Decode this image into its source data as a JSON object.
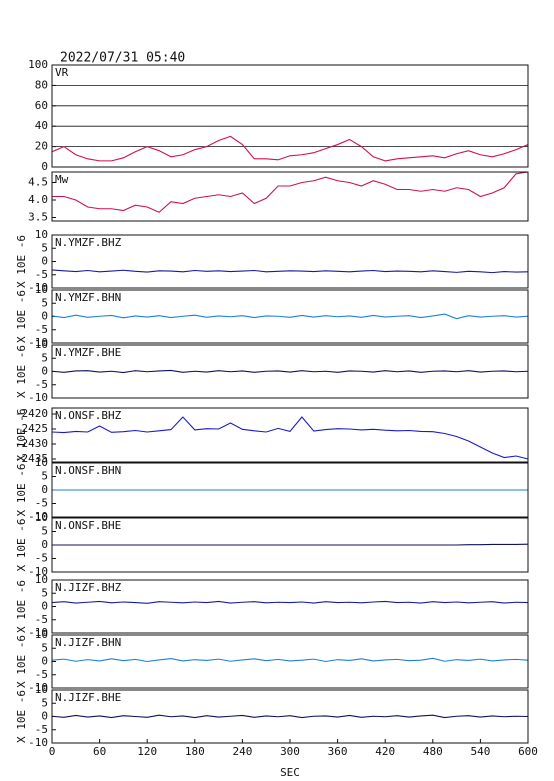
{
  "chart_data": [
    {
      "type": "line",
      "title": "2022/07/31 05:40",
      "label": "VR",
      "color": "#d0104c",
      "grid": true,
      "xlim": [
        0,
        600
      ],
      "ylim": [
        0,
        100
      ],
      "yticks": [
        0,
        20,
        40,
        60,
        80,
        100
      ],
      "x": [
        0,
        15,
        30,
        45,
        60,
        75,
        90,
        105,
        120,
        135,
        150,
        165,
        180,
        195,
        210,
        225,
        240,
        255,
        270,
        285,
        300,
        315,
        330,
        345,
        360,
        375,
        390,
        405,
        420,
        435,
        450,
        465,
        480,
        495,
        510,
        525,
        540,
        555,
        570,
        585,
        600
      ],
      "values": [
        15,
        20,
        12,
        8,
        6,
        6,
        9,
        15,
        20,
        16,
        10,
        12,
        17,
        20,
        26,
        30,
        22,
        8,
        8,
        7,
        11,
        12,
        14,
        18,
        22,
        27,
        20,
        10,
        6,
        8,
        9,
        10,
        11,
        9,
        13,
        16,
        12,
        10,
        13,
        17,
        22
      ]
    },
    {
      "type": "line",
      "label": "Mw",
      "color": "#d0104c",
      "grid": false,
      "xlim": [
        0,
        600
      ],
      "ylim": [
        3.4,
        4.8
      ],
      "yticks": [
        3.5,
        {
          "value": 4,
          "label": "4.0"
        },
        4.5
      ],
      "x": [
        0,
        15,
        30,
        45,
        60,
        75,
        90,
        105,
        120,
        135,
        150,
        165,
        180,
        195,
        210,
        225,
        240,
        255,
        270,
        285,
        300,
        315,
        330,
        345,
        360,
        375,
        390,
        405,
        420,
        435,
        450,
        465,
        480,
        495,
        510,
        525,
        540,
        555,
        570,
        585,
        600
      ],
      "values": [
        4.1,
        4.1,
        4.0,
        3.8,
        3.75,
        3.75,
        3.7,
        3.85,
        3.8,
        3.65,
        3.95,
        3.9,
        4.05,
        4.1,
        4.15,
        4.1,
        4.2,
        3.9,
        4.05,
        4.4,
        4.4,
        4.5,
        4.55,
        4.65,
        4.55,
        4.5,
        4.4,
        4.55,
        4.45,
        4.3,
        4.3,
        4.25,
        4.3,
        4.25,
        4.35,
        4.3,
        4.1,
        4.2,
        4.35,
        4.75,
        4.8
      ]
    },
    {
      "type": "line",
      "label": "N.YMZF.BHZ",
      "ylabel": "X 10E -6",
      "color": "#1a1aa0",
      "grid": false,
      "xlim": [
        0,
        600
      ],
      "ylim": [
        -10,
        10
      ],
      "yticks": [
        -10,
        -5,
        0,
        5,
        10
      ],
      "x": [
        0,
        15,
        30,
        45,
        60,
        75,
        90,
        105,
        120,
        135,
        150,
        165,
        180,
        195,
        210,
        225,
        240,
        255,
        270,
        285,
        300,
        315,
        330,
        345,
        360,
        375,
        390,
        405,
        420,
        435,
        450,
        465,
        480,
        495,
        510,
        525,
        540,
        555,
        570,
        585,
        600
      ],
      "values": [
        -3.2,
        -3.5,
        -3.8,
        -3.4,
        -3.9,
        -3.6,
        -3.3,
        -3.7,
        -4.0,
        -3.5,
        -3.6,
        -3.9,
        -3.4,
        -3.7,
        -3.5,
        -3.8,
        -3.6,
        -3.4,
        -3.9,
        -3.7,
        -3.5,
        -3.6,
        -3.8,
        -3.5,
        -3.7,
        -3.9,
        -3.6,
        -3.4,
        -3.8,
        -3.6,
        -3.7,
        -3.9,
        -3.5,
        -3.8,
        -4.1,
        -3.7,
        -3.9,
        -4.2,
        -3.8,
        -4.0,
        -3.9
      ]
    },
    {
      "type": "line",
      "label": "N.YMZF.BHN",
      "ylabel": "X 10E -6",
      "color": "#1e7fd8",
      "grid": false,
      "xlim": [
        0,
        600
      ],
      "ylim": [
        -10,
        10
      ],
      "yticks": [
        -10,
        -5,
        0,
        5,
        10
      ],
      "x": [
        0,
        15,
        30,
        45,
        60,
        75,
        90,
        105,
        120,
        135,
        150,
        165,
        180,
        195,
        210,
        225,
        240,
        255,
        270,
        285,
        300,
        315,
        330,
        345,
        360,
        375,
        390,
        405,
        420,
        435,
        450,
        465,
        480,
        495,
        510,
        525,
        540,
        555,
        570,
        585,
        600
      ],
      "values": [
        0.2,
        -0.4,
        0.5,
        -0.3,
        0.1,
        0.4,
        -0.5,
        0.2,
        -0.2,
        0.3,
        -0.4,
        0.1,
        0.5,
        -0.3,
        0.2,
        -0.1,
        0.3,
        -0.4,
        0.2,
        0.1,
        -0.3,
        0.4,
        -0.2,
        0.3,
        -0.1,
        0.2,
        -0.3,
        0.4,
        -0.2,
        0.1,
        0.3,
        -0.4,
        0.2,
        0.9,
        -0.8,
        0.3,
        -0.2,
        0.1,
        0.3,
        -0.2,
        0.1
      ]
    },
    {
      "type": "line",
      "label": "N.YMZF.BHE",
      "ylabel": "X 10E -6",
      "color": "#101060",
      "grid": false,
      "xlim": [
        0,
        600
      ],
      "ylim": [
        -10,
        10
      ],
      "yticks": [
        -10,
        -5,
        0,
        5,
        10
      ],
      "x": [
        0,
        15,
        30,
        45,
        60,
        75,
        90,
        105,
        120,
        135,
        150,
        165,
        180,
        195,
        210,
        225,
        240,
        255,
        270,
        285,
        300,
        315,
        330,
        345,
        360,
        375,
        390,
        405,
        420,
        435,
        450,
        465,
        480,
        495,
        510,
        525,
        540,
        555,
        570,
        585,
        600
      ],
      "values": [
        0.1,
        -0.3,
        0.2,
        0.3,
        -0.2,
        0.1,
        -0.4,
        0.3,
        -0.1,
        0.2,
        0.4,
        -0.3,
        0.1,
        -0.2,
        0.3,
        -0.1,
        0.2,
        -0.3,
        0.1,
        0.2,
        -0.2,
        0.3,
        -0.1,
        0.1,
        -0.3,
        0.2,
        0.1,
        -0.2,
        0.3,
        -0.1,
        0.2,
        -0.3,
        0.1,
        0.2,
        -0.1,
        0.3,
        -0.2,
        0.1,
        0.2,
        -0.1,
        0.1
      ]
    },
    {
      "type": "line",
      "label": "N.ONSF.BHZ",
      "ylabel": "X 10E -6",
      "color": "#1a1acd",
      "grid": false,
      "xlim": [
        0,
        600
      ],
      "ylim": [
        -2436,
        -2418
      ],
      "yticks": [
        -2435,
        -2430,
        -2425,
        -2420
      ],
      "x": [
        0,
        15,
        30,
        45,
        60,
        75,
        90,
        105,
        120,
        135,
        150,
        165,
        180,
        195,
        210,
        225,
        240,
        255,
        270,
        285,
        300,
        315,
        330,
        345,
        360,
        375,
        390,
        405,
        420,
        435,
        450,
        465,
        480,
        495,
        510,
        525,
        540,
        555,
        570,
        585,
        600
      ],
      "values": [
        -2426,
        -2426.2,
        -2425.8,
        -2426,
        -2424,
        -2426.1,
        -2425.9,
        -2425.5,
        -2426,
        -2425.6,
        -2425.2,
        -2421,
        -2425.3,
        -2424.9,
        -2425,
        -2423,
        -2425.1,
        -2425.6,
        -2426,
        -2424.8,
        -2425.8,
        -2421,
        -2425.7,
        -2425.2,
        -2424.9,
        -2425,
        -2425.3,
        -2425.1,
        -2425.4,
        -2425.6,
        -2425.5,
        -2425.8,
        -2425.9,
        -2426.5,
        -2427.5,
        -2429,
        -2431,
        -2433,
        -2434.5,
        -2434,
        -2435
      ]
    },
    {
      "type": "line",
      "label": "N.ONSF.BHN",
      "ylabel": "X 10E -6",
      "color": "#1e7fd8",
      "grid": false,
      "xlim": [
        0,
        600
      ],
      "ylim": [
        -10,
        10
      ],
      "yticks": [
        -10,
        -5,
        0,
        5,
        10
      ],
      "x": [
        0,
        15,
        30,
        45,
        60,
        75,
        90,
        105,
        120,
        135,
        150,
        165,
        180,
        195,
        210,
        225,
        240,
        255,
        270,
        285,
        300,
        315,
        330,
        345,
        360,
        375,
        390,
        405,
        420,
        435,
        450,
        465,
        480,
        495,
        510,
        525,
        540,
        555,
        570,
        585,
        600
      ],
      "values": [
        0,
        0,
        0,
        0,
        0,
        0,
        0,
        0,
        0,
        0,
        0,
        0,
        0,
        0,
        0,
        0,
        0,
        0,
        0,
        0,
        0,
        0,
        0,
        0,
        0,
        0,
        0,
        0,
        0,
        0,
        0,
        0,
        0,
        0,
        0,
        0,
        0,
        0,
        0,
        0,
        0
      ]
    },
    {
      "type": "line",
      "label": "N.ONSF.BHE",
      "ylabel": "X 10E -6",
      "color": "#101060",
      "grid": false,
      "xlim": [
        0,
        600
      ],
      "ylim": [
        -10,
        10
      ],
      "yticks": [
        -10,
        -5,
        0,
        5,
        10
      ],
      "x": [
        0,
        15,
        30,
        45,
        60,
        75,
        90,
        105,
        120,
        135,
        150,
        165,
        180,
        195,
        210,
        225,
        240,
        255,
        270,
        285,
        300,
        315,
        330,
        345,
        360,
        375,
        390,
        405,
        420,
        435,
        450,
        465,
        480,
        495,
        510,
        525,
        540,
        555,
        570,
        585,
        600
      ],
      "values": [
        0,
        0,
        0,
        0,
        0,
        0,
        0,
        0,
        0,
        0,
        0,
        0,
        0,
        0,
        0,
        0,
        0,
        0,
        0,
        0,
        0,
        0,
        0,
        0,
        0,
        0,
        0,
        0,
        0,
        0,
        0,
        0,
        0,
        0,
        0,
        0.1,
        0.1,
        0.2,
        0.2,
        0.2,
        0.3
      ]
    },
    {
      "type": "line",
      "label": "N.JIZF.BHZ",
      "ylabel": "X 10E -6",
      "color": "#1a1aa0",
      "grid": false,
      "xlim": [
        0,
        600
      ],
      "ylim": [
        -10,
        10
      ],
      "yticks": [
        -10,
        -5,
        0,
        5,
        10
      ],
      "x": [
        0,
        15,
        30,
        45,
        60,
        75,
        90,
        105,
        120,
        135,
        150,
        165,
        180,
        195,
        210,
        225,
        240,
        255,
        270,
        285,
        300,
        315,
        330,
        345,
        360,
        375,
        390,
        405,
        420,
        435,
        450,
        465,
        480,
        495,
        510,
        525,
        540,
        555,
        570,
        585,
        600
      ],
      "values": [
        1.5,
        1.8,
        1.3,
        1.6,
        1.9,
        1.4,
        1.7,
        1.5,
        1.2,
        1.8,
        1.6,
        1.4,
        1.7,
        1.5,
        1.9,
        1.3,
        1.6,
        1.8,
        1.4,
        1.6,
        1.5,
        1.7,
        1.3,
        1.8,
        1.5,
        1.6,
        1.4,
        1.7,
        1.9,
        1.5,
        1.6,
        1.3,
        1.8,
        1.5,
        1.7,
        1.4,
        1.6,
        1.8,
        1.3,
        1.6,
        1.5
      ]
    },
    {
      "type": "line",
      "label": "N.JIZF.BHN",
      "ylabel": "X 10E -6",
      "color": "#1e7fd8",
      "grid": false,
      "xlim": [
        0,
        600
      ],
      "ylim": [
        -10,
        10
      ],
      "yticks": [
        -10,
        -5,
        0,
        5,
        10
      ],
      "x": [
        0,
        15,
        30,
        45,
        60,
        75,
        90,
        105,
        120,
        135,
        150,
        165,
        180,
        195,
        210,
        225,
        240,
        255,
        270,
        285,
        300,
        315,
        330,
        345,
        360,
        375,
        390,
        405,
        420,
        435,
        450,
        465,
        480,
        495,
        510,
        525,
        540,
        555,
        570,
        585,
        600
      ],
      "values": [
        0.5,
        0.9,
        0.1,
        0.7,
        0.2,
        1.0,
        0.3,
        0.8,
        0.0,
        0.6,
        1.1,
        0.2,
        0.7,
        0.4,
        0.9,
        0.1,
        0.6,
        1.0,
        0.3,
        0.8,
        0.2,
        0.5,
        0.9,
        0.0,
        0.7,
        0.4,
        1.0,
        0.2,
        0.6,
        0.8,
        0.3,
        0.5,
        1.2,
        0.1,
        0.7,
        0.4,
        0.9,
        0.2,
        0.6,
        0.8,
        0.5
      ]
    },
    {
      "type": "line",
      "label": "N.JIZF.BHE",
      "ylabel": "X 10E -6",
      "color": "#101060",
      "grid": false,
      "xlim": [
        0,
        600
      ],
      "ylim": [
        -10,
        10
      ],
      "yticks": [
        -10,
        -5,
        0,
        5,
        10
      ],
      "xticks": [
        0,
        60,
        120,
        180,
        240,
        300,
        360,
        420,
        480,
        540,
        600
      ],
      "xlabel": "SEC",
      "x": [
        0,
        15,
        30,
        45,
        60,
        75,
        90,
        105,
        120,
        135,
        150,
        165,
        180,
        195,
        210,
        225,
        240,
        255,
        270,
        285,
        300,
        315,
        330,
        345,
        360,
        375,
        390,
        405,
        420,
        435,
        450,
        465,
        480,
        495,
        510,
        525,
        540,
        555,
        570,
        585,
        600
      ],
      "values": [
        0.1,
        -0.3,
        0.4,
        -0.2,
        0.2,
        -0.4,
        0.3,
        0.0,
        -0.3,
        0.5,
        -0.1,
        0.2,
        -0.4,
        0.3,
        -0.2,
        0.1,
        0.4,
        -0.3,
        0.2,
        -0.1,
        0.3,
        -0.4,
        0.1,
        0.2,
        -0.2,
        0.4,
        -0.3,
        0.1,
        -0.1,
        0.3,
        -0.2,
        0.2,
        0.5,
        -0.4,
        0.1,
        0.3,
        -0.2,
        0.2,
        -0.1,
        0.1,
        0.0
      ]
    }
  ]
}
